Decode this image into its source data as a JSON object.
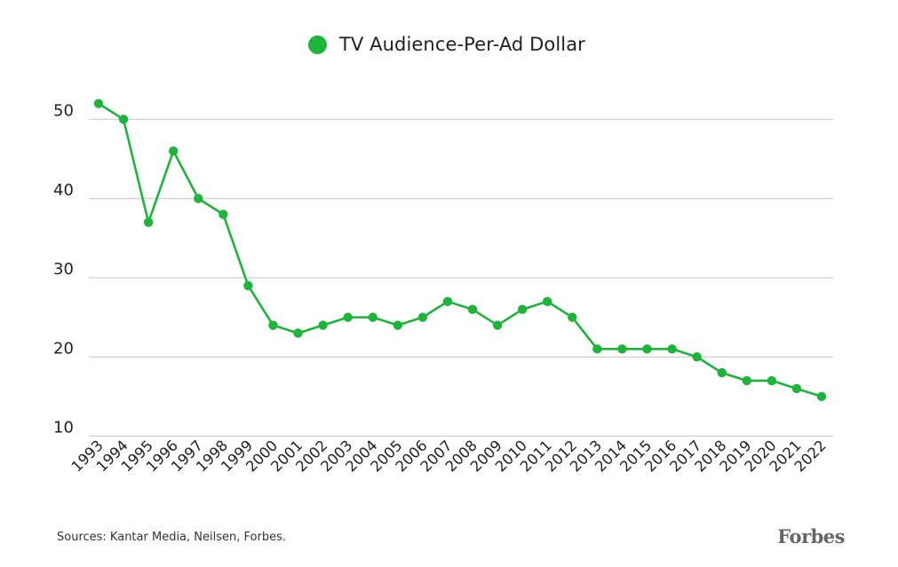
{
  "chart_data": {
    "type": "line",
    "title": "",
    "xlabel": "",
    "ylabel": "",
    "x": [
      "1993",
      "1994",
      "1995",
      "1996",
      "1997",
      "1998",
      "1999",
      "2000",
      "2001",
      "2002",
      "2003",
      "2004",
      "2005",
      "2006",
      "2007",
      "2008",
      "2009",
      "2010",
      "2011",
      "2012",
      "2013",
      "2014",
      "2015",
      "2016",
      "2017",
      "2018",
      "2019",
      "2020",
      "2021",
      "2022"
    ],
    "series": [
      {
        "name": "TV Audience-Per-Ad Dollar",
        "values": [
          52,
          50,
          37,
          46,
          40,
          38,
          29,
          24,
          23,
          24,
          25,
          25,
          24,
          25,
          27,
          26,
          24,
          26,
          27,
          25,
          21,
          21,
          21,
          21,
          20,
          18,
          17,
          17,
          16,
          15
        ]
      }
    ],
    "ylim": [
      10,
      55
    ],
    "yticks": [
      10,
      20,
      30,
      40,
      50
    ],
    "grid": true,
    "legend_position": "top-center",
    "colors": {
      "series": "#1db43a",
      "grid": "#cfcfcf",
      "tick_text": "#222222"
    }
  },
  "source_note": "Sources: Kantar Media, Neilsen, Forbes.",
  "logo": "Forbes"
}
